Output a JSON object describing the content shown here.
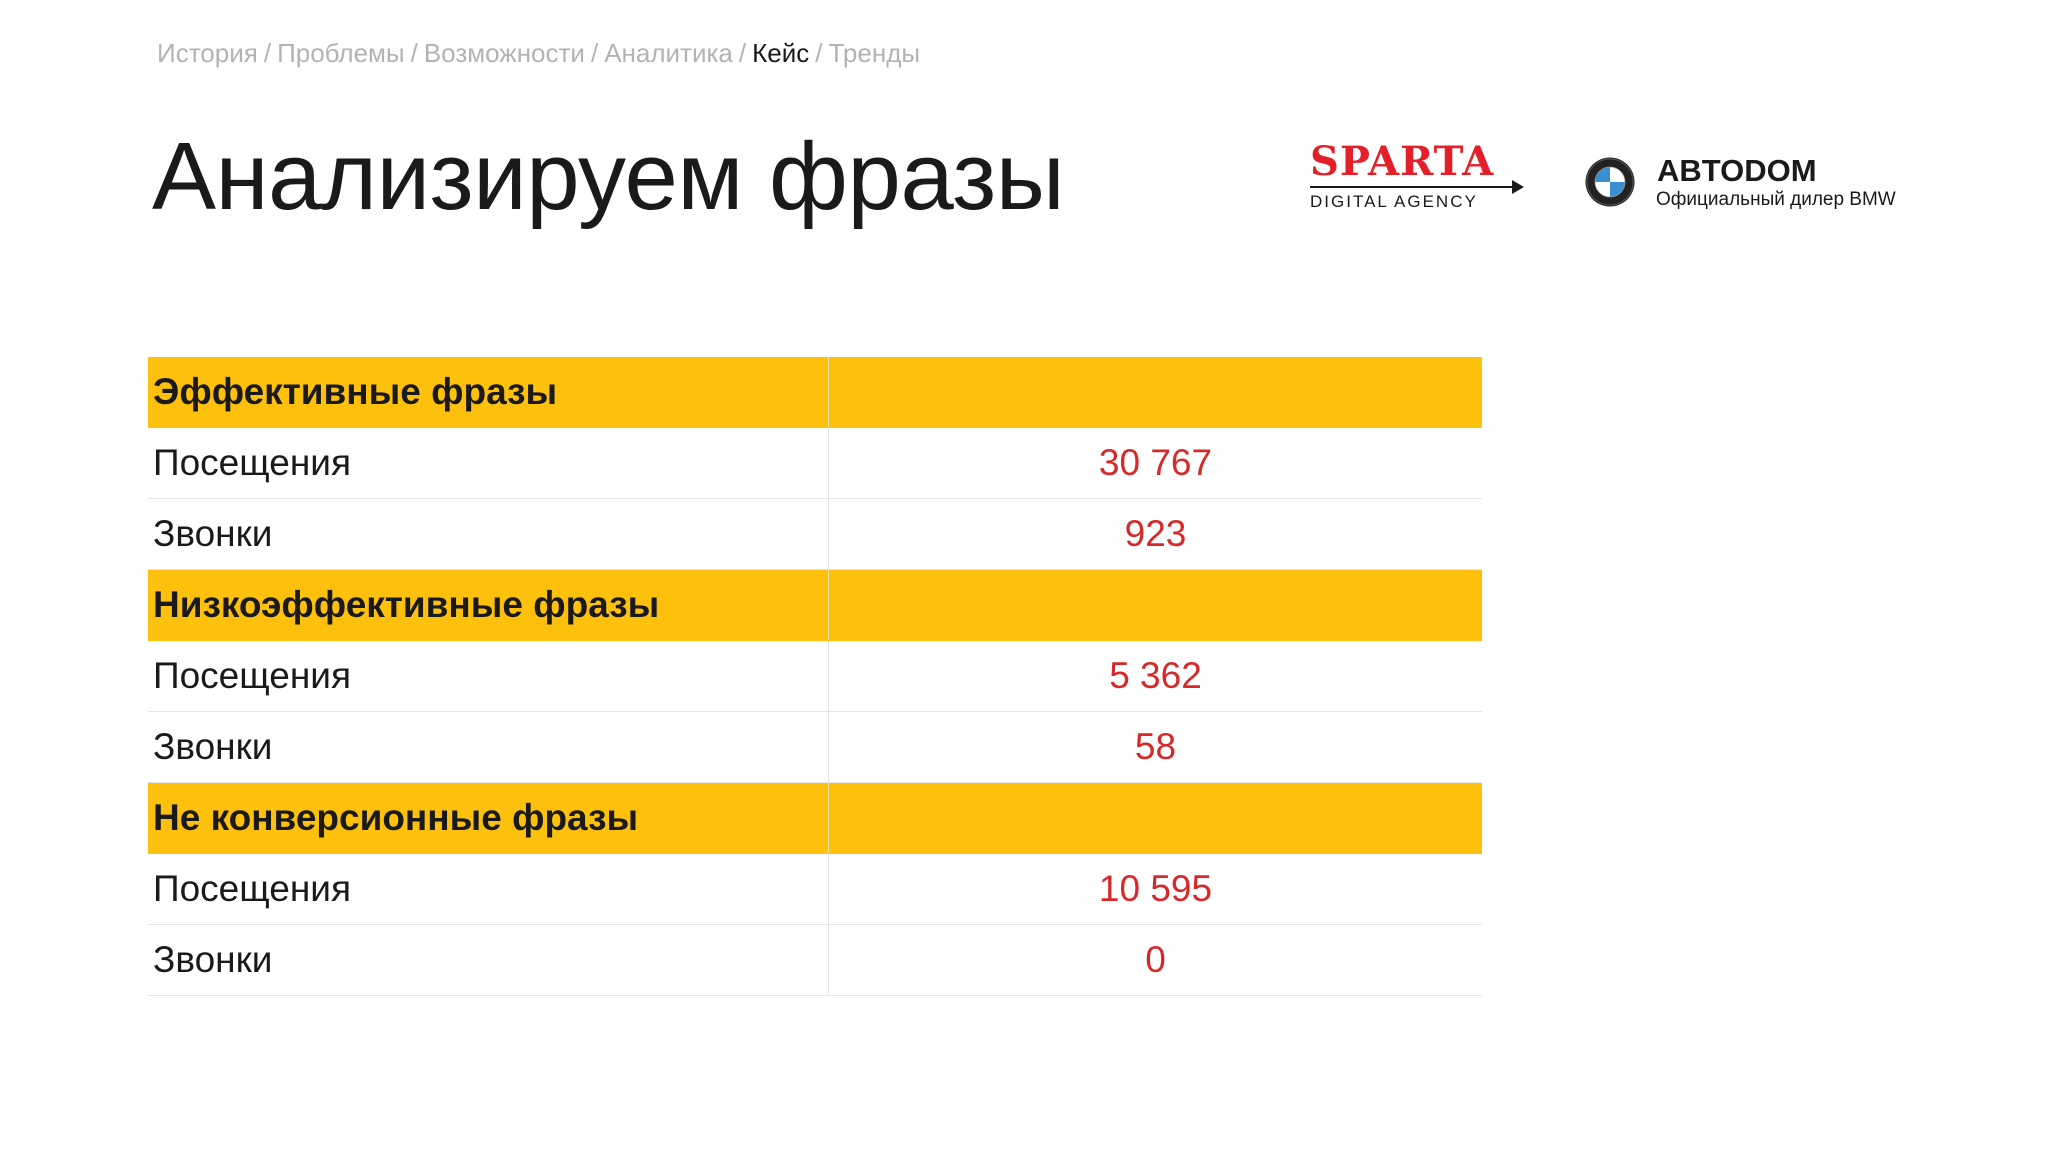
{
  "breadcrumb": {
    "items": [
      "История",
      "Проблемы",
      "Возможности",
      "Аналитика",
      "Кейс",
      "Тренды"
    ],
    "active_index": 4,
    "separator": "/"
  },
  "title": "Анализируем фразы",
  "logos": {
    "sparta": {
      "name": "SPARTA",
      "tagline": "DIGITAL AGENCY",
      "color": "#e3202a"
    },
    "dealer": {
      "name": "ABTODOM",
      "subtitle": "Официальный дилер BMW"
    }
  },
  "table": {
    "sections": [
      {
        "header": "Эффективные фразы",
        "rows": [
          {
            "label": "Посещения",
            "value": "30 767"
          },
          {
            "label": "Звонки",
            "value": "923"
          }
        ]
      },
      {
        "header": "Низкоэффективные фразы",
        "rows": [
          {
            "label": "Посещения",
            "value": "5 362"
          },
          {
            "label": "Звонки",
            "value": "58"
          }
        ]
      },
      {
        "header": "Не конверсионные фразы",
        "rows": [
          {
            "label": "Посещения",
            "value": "10 595"
          },
          {
            "label": "Звонки",
            "value": "0"
          }
        ]
      }
    ]
  },
  "colors": {
    "section_header_bg": "#fdc10d",
    "value_text": "#d62a2a",
    "breadcrumb_inactive": "#b3b3b3"
  }
}
